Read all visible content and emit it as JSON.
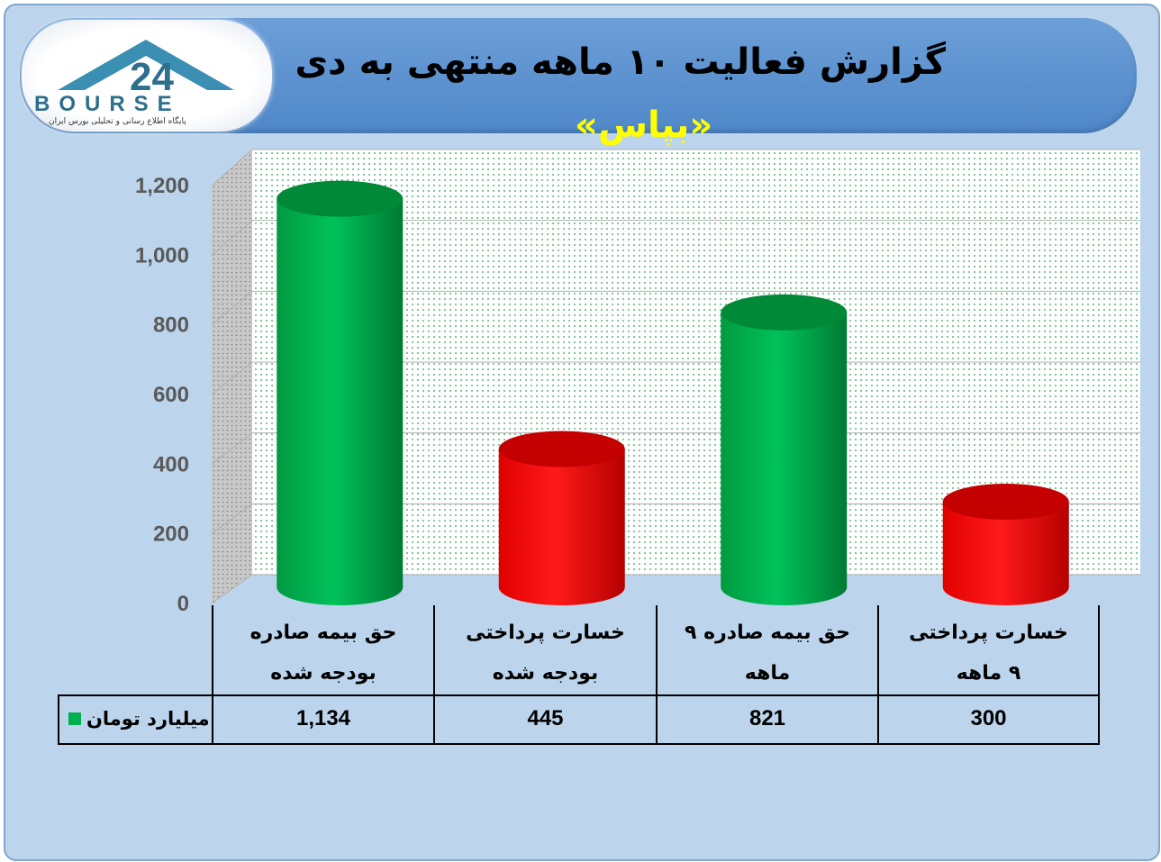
{
  "header": {
    "title": "گزارش فعالیت ۱۰ ماهه منتهی به دی",
    "subtitle": "«بپاس»"
  },
  "logo": {
    "mark": "24",
    "word": "BOURSE",
    "tagline": "پایگاه اطلاع رسانی و تحلیلی بورس ایران"
  },
  "colors": {
    "frame_bg": "#bcd5ec",
    "header_bg": "#5a8fcf",
    "green_bar": "#00b050",
    "red_bar": "#ff0000",
    "title_text": "#000000",
    "subtitle_text": "#ffff00"
  },
  "chart_data": {
    "type": "bar",
    "style": "3d-cylinder",
    "title": "گزارش فعالیت ۱۰ ماهه منتهی به دی",
    "subtitle": "«بپاس»",
    "categories": [
      [
        "حق بیمه صادره",
        "بودجه شده"
      ],
      [
        "خسارت پرداختی",
        "بودجه شده"
      ],
      [
        "حق بیمه صادره ۹",
        "ماهه"
      ],
      [
        "خسارت پرداختی",
        "۹ ماهه"
      ]
    ],
    "values": [
      1134,
      445,
      821,
      300
    ],
    "value_labels": [
      "1,134",
      "445",
      "821",
      "300"
    ],
    "bar_colors": [
      "#00b050",
      "#ff0000",
      "#00b050",
      "#ff0000"
    ],
    "series": [
      {
        "name": "میلیارد تومان",
        "values": [
          1134,
          445,
          821,
          300
        ]
      }
    ],
    "yticks": [
      "0",
      "200",
      "400",
      "600",
      "800",
      "1,000",
      "1,200"
    ],
    "ylim": [
      0,
      1200
    ],
    "grid": true,
    "legend": "data-table-left",
    "data_table": true
  }
}
